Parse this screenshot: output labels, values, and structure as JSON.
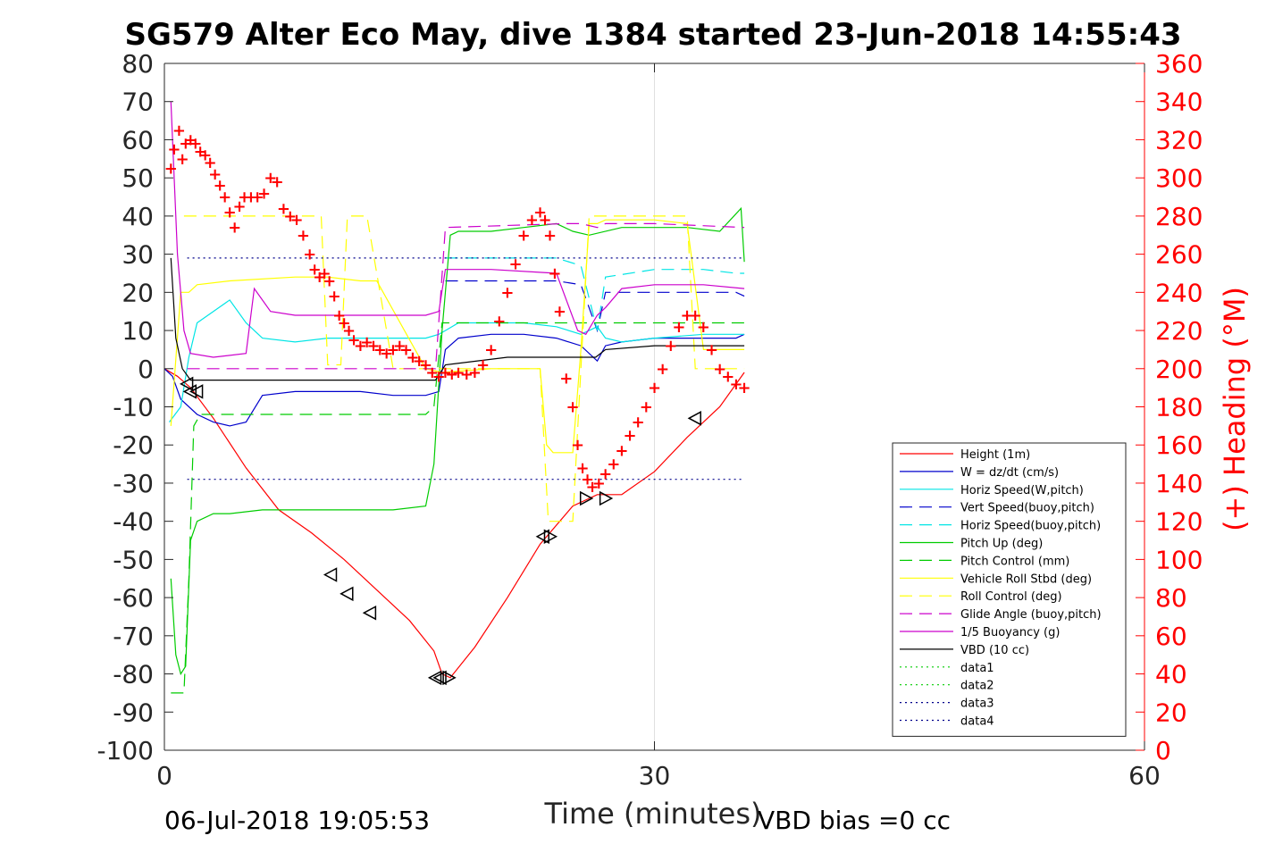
{
  "chart_data": {
    "type": "line",
    "title": "SG579 Alter Eco May, dive 1384 started 23-Jun-2018 14:55:43",
    "xlabel": "Time (minutes)",
    "ylabel": "",
    "y2label": "(+) Heading (°M)",
    "xlim": [
      0,
      60
    ],
    "ylim": [
      -100,
      80
    ],
    "y2lim": [
      0,
      360
    ],
    "x_ticks": [
      "0",
      "30",
      "60"
    ],
    "y_ticks": [
      "80",
      "70",
      "60",
      "50",
      "40",
      "30",
      "20",
      "10",
      "0",
      "-10",
      "-20",
      "-30",
      "-40",
      "-50",
      "-60",
      "-70",
      "-80",
      "-90",
      "-100"
    ],
    "y2_ticks": [
      "360",
      "340",
      "320",
      "300",
      "280",
      "260",
      "240",
      "220",
      "200",
      "180",
      "160",
      "140",
      "120",
      "100",
      "80",
      "60",
      "40",
      "20",
      "0"
    ],
    "grid": "x-only at 30",
    "legend_position": "bottom-right",
    "footer_left": "06-Jul-2018 19:05:53",
    "footer_right": "VBD bias =0 cc",
    "colors": {
      "height": "#ff0000",
      "w": "#0000cc",
      "hspeed": "#00e5e5",
      "pitch": "#00cc00",
      "roll": "#ffff00",
      "glide": "#cc00cc",
      "vbd": "#000000",
      "data12": "#00cc00",
      "data34": "#00008b",
      "heading": "#ff0000"
    },
    "series": [
      {
        "name": "Height (1m)",
        "color": "#ff0000",
        "style": "solid",
        "x": [
          0,
          0.8,
          1.6,
          3,
          5,
          7,
          9,
          11,
          13,
          15,
          16.5,
          17,
          17.5,
          19,
          21,
          23,
          25,
          26.5,
          28,
          30,
          32,
          34,
          35.5
        ],
        "y": [
          0,
          -2,
          -5,
          -13,
          -26,
          -37,
          -43,
          -50,
          -58,
          -66,
          -74,
          -80,
          -81,
          -73,
          -60,
          -46,
          -36,
          -33,
          -33,
          -27,
          -18,
          -10,
          -1
        ]
      },
      {
        "name": "W = dz/dt (cm/s)",
        "color": "#0000cc",
        "style": "solid",
        "x": [
          0,
          0.5,
          1,
          2,
          3,
          4,
          5,
          6,
          8,
          10,
          12,
          14,
          16,
          16.8,
          17.2,
          18,
          20,
          22,
          24,
          25.5,
          26.5,
          27,
          28,
          30,
          33,
          35,
          35.5
        ],
        "y": [
          0,
          -2,
          -8,
          -12,
          -14,
          -15,
          -14,
          -7,
          -6,
          -6,
          -6,
          -7,
          -7,
          -6,
          5,
          8,
          9,
          9,
          8,
          6,
          2,
          6,
          7,
          8,
          8,
          8,
          9
        ]
      },
      {
        "name": "Horiz Speed(W,pitch)",
        "color": "#00e5e5",
        "style": "solid",
        "x": [
          0.3,
          1,
          1.5,
          2,
          3,
          4,
          5,
          6,
          8,
          10,
          12,
          14,
          16,
          16.8,
          17.2,
          18,
          20,
          22,
          24,
          25.5,
          26.5,
          27,
          28,
          30,
          33,
          35,
          35.5
        ],
        "y": [
          -14,
          -10,
          3,
          12,
          15,
          18,
          12,
          8,
          7,
          8,
          8,
          8,
          8,
          9,
          10,
          12,
          12,
          12,
          11,
          9,
          11,
          8,
          7,
          8,
          9,
          9,
          9
        ]
      },
      {
        "name": "Vert Speed(buoy,pitch)",
        "color": "#0000cc",
        "style": "dashed",
        "x": [
          17.2,
          20,
          24,
          25.5,
          26.5,
          27,
          30,
          33,
          35,
          35.5
        ],
        "y": [
          23,
          23,
          23,
          22,
          10,
          20,
          20,
          20,
          20,
          19
        ]
      },
      {
        "name": "Horiz Speed(buoy,pitch)",
        "color": "#00e5e5",
        "style": "dashed",
        "x": [
          17.2,
          20,
          24,
          25.5,
          26.5,
          27,
          30,
          33,
          35,
          35.5
        ],
        "y": [
          29,
          29,
          29,
          27,
          10,
          24,
          26,
          26,
          25,
          25
        ]
      },
      {
        "name": "Pitch Up (deg)",
        "color": "#00cc00",
        "style": "solid",
        "x": [
          0.4,
          0.7,
          1,
          1.3,
          1.6,
          2,
          3,
          4,
          6,
          8,
          10,
          12,
          14,
          16,
          16.5,
          17,
          17.5,
          18,
          20,
          22,
          24,
          25,
          26,
          28,
          30,
          32,
          34,
          35.3,
          35.5
        ],
        "y": [
          -55,
          -75,
          -80,
          -78,
          -45,
          -40,
          -38,
          -38,
          -37,
          -37,
          -37,
          -37,
          -37,
          -36,
          -25,
          10,
          35,
          36,
          36,
          37,
          38,
          36,
          35,
          37,
          37,
          37,
          36,
          42,
          28
        ]
      },
      {
        "name": "Pitch Control (mm)",
        "color": "#00cc00",
        "style": "dashed",
        "x": [
          0.4,
          1.2,
          1.5,
          1.8,
          2.2,
          16,
          16.5,
          17,
          30,
          35.5
        ],
        "y": [
          -85,
          -85,
          -55,
          -15,
          -12,
          -12,
          -10,
          12,
          12,
          12
        ]
      },
      {
        "name": "Vehicle Roll Stbd (deg)",
        "color": "#ffff00",
        "style": "solid",
        "x": [
          0.4,
          1,
          1.5,
          2,
          4,
          8,
          10,
          12,
          13,
          16,
          17,
          20,
          23,
          23.4,
          23.8,
          25,
          25.5,
          26,
          26.5,
          27,
          30,
          32,
          33,
          35.5
        ],
        "y": [
          -15,
          20,
          20,
          22,
          23,
          24,
          24,
          23,
          23,
          0,
          -1,
          0,
          0,
          -20,
          -22,
          -22,
          5,
          38,
          38,
          39,
          39,
          38,
          5,
          5
        ]
      },
      {
        "name": "Roll Control (deg)",
        "color": "#ffff00",
        "style": "dashed",
        "x": [
          1.2,
          1.6,
          2,
          9.6,
          10,
          10.8,
          11.2,
          11.6,
          12.4,
          14,
          17,
          17.5,
          23,
          23.5,
          25,
          25.5,
          26,
          30,
          32,
          32.5,
          35.5
        ],
        "y": [
          40,
          40,
          40,
          40,
          1,
          1,
          40,
          40,
          40,
          0,
          0,
          0,
          0,
          -40,
          -40,
          0,
          40,
          40,
          40,
          0,
          0
        ]
      },
      {
        "name": "Glide Angle (buoy,pitch)",
        "color": "#cc00cc",
        "style": "dashed",
        "x": [
          1.4,
          16.6,
          17.2,
          24.5,
          25.5,
          26.5,
          27,
          30,
          35.5
        ],
        "y": [
          0,
          0,
          37,
          38,
          38,
          37,
          38,
          38,
          37
        ]
      },
      {
        "name": "1/5 Buoyancy (g)",
        "color": "#cc00cc",
        "style": "solid",
        "x": [
          0.4,
          0.8,
          1.2,
          1.6,
          3,
          5,
          5.5,
          6.5,
          8,
          12,
          16,
          16.8,
          17.2,
          20,
          24,
          25.3,
          25.8,
          26.5,
          27,
          28,
          30,
          33,
          35.5
        ],
        "y": [
          70,
          30,
          10,
          4,
          3,
          4,
          21,
          15,
          14,
          14,
          14,
          15,
          26,
          26,
          25,
          10,
          9,
          14,
          16,
          21,
          22,
          22,
          21
        ]
      },
      {
        "name": "VBD (10 cc)",
        "color": "#000000",
        "style": "solid",
        "x": [
          0.4,
          0.7,
          1.1,
          1.6,
          2.2,
          16.6,
          17.2,
          21,
          24.6,
          25.8,
          26.4,
          27,
          30,
          35.5
        ],
        "y": [
          29,
          8,
          0,
          -3,
          -3,
          -3,
          1,
          3,
          3,
          3,
          3,
          5,
          6,
          6
        ]
      },
      {
        "name": "data1",
        "color": "#00cc00",
        "style": "dotted",
        "x": [],
        "y": []
      },
      {
        "name": "data2",
        "color": "#00cc00",
        "style": "dotted",
        "x": [],
        "y": []
      },
      {
        "name": "data3",
        "color": "#00008b",
        "style": "dotted",
        "x": [
          1.4,
          35.5
        ],
        "y": [
          29,
          29
        ]
      },
      {
        "name": "data4",
        "color": "#00008b",
        "style": "dotted",
        "x": [
          1.4,
          35.5
        ],
        "y": [
          -29,
          -29
        ]
      }
    ],
    "heading": {
      "axis": "y2",
      "marker": "+",
      "color": "#ff0000",
      "x": [
        0.4,
        0.6,
        0.9,
        1.1,
        1.3,
        1.6,
        1.9,
        2.2,
        2.5,
        2.8,
        3.1,
        3.4,
        3.7,
        4,
        4.3,
        4.6,
        4.9,
        5.3,
        5.7,
        6.1,
        6.5,
        6.9,
        7.3,
        7.7,
        8.1,
        8.5,
        8.9,
        9.2,
        9.5,
        9.8,
        10.1,
        10.4,
        10.7,
        11,
        11.3,
        11.6,
        12,
        12.4,
        12.8,
        13.2,
        13.6,
        14,
        14.4,
        14.8,
        15.2,
        15.6,
        16,
        16.4,
        16.8,
        17.2,
        17.6,
        18,
        18.5,
        19,
        19.5,
        20,
        20.5,
        21,
        21.5,
        22,
        22.5,
        23,
        23.3,
        23.6,
        23.9,
        24.2,
        24.6,
        25,
        25.3,
        25.6,
        25.9,
        26.2,
        26.6,
        27,
        27.5,
        28,
        28.5,
        29,
        29.5,
        30,
        30.5,
        31,
        31.5,
        32,
        32.5,
        33,
        33.5,
        34,
        34.5,
        35,
        35.5
      ],
      "y": [
        305,
        315,
        325,
        310,
        318,
        320,
        318,
        314,
        312,
        308,
        302,
        296,
        290,
        282,
        274,
        285,
        290,
        290,
        290,
        292,
        300,
        298,
        284,
        280,
        278,
        270,
        260,
        252,
        248,
        250,
        246,
        238,
        228,
        224,
        220,
        215,
        212,
        214,
        212,
        210,
        208,
        210,
        212,
        210,
        206,
        204,
        202,
        198,
        196,
        198,
        197,
        198,
        197,
        198,
        202,
        210,
        225,
        240,
        255,
        270,
        278,
        282,
        278,
        270,
        250,
        230,
        195,
        180,
        160,
        148,
        142,
        138,
        140,
        145,
        150,
        157,
        165,
        172,
        180,
        190,
        200,
        212,
        222,
        228,
        228,
        222,
        210,
        200,
        196,
        192,
        190
      ]
    },
    "markers": {
      "left_triangles": [
        [
          1.4,
          -4
        ],
        [
          1.6,
          -6
        ],
        [
          2,
          -6
        ],
        [
          10.2,
          -54
        ],
        [
          11.2,
          -59
        ],
        [
          12.6,
          -64
        ],
        [
          16.6,
          -81
        ],
        [
          16.9,
          -81
        ],
        [
          23.2,
          -44
        ],
        [
          32.5,
          -13
        ]
      ],
      "right_triangles": [
        [
          17.4,
          -81
        ],
        [
          23.6,
          -44
        ],
        [
          25.8,
          -34
        ],
        [
          27,
          -34
        ]
      ]
    }
  }
}
